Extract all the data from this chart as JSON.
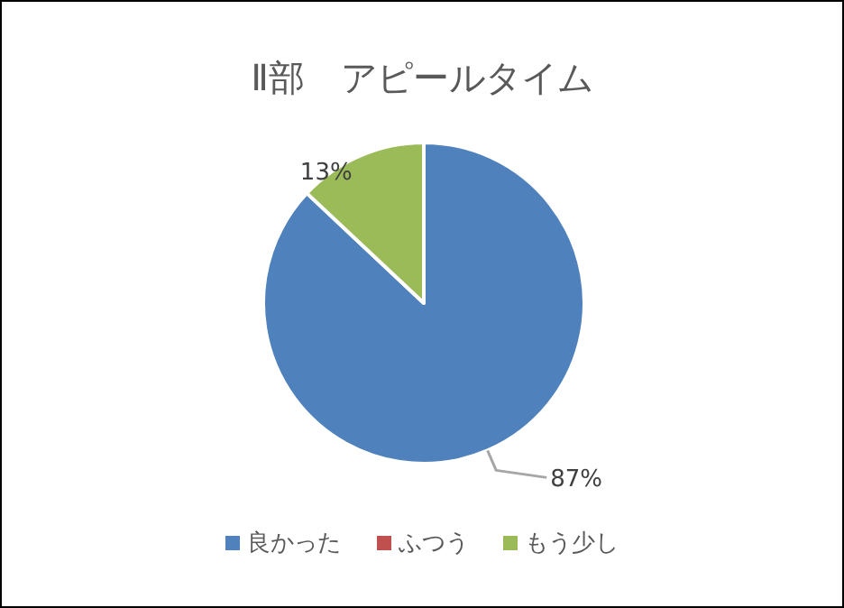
{
  "chart_data": {
    "type": "pie",
    "title": "Ⅱ部　アピールタイム",
    "categories": [
      "良かった",
      "ふつう",
      "もう少し"
    ],
    "values": [
      87,
      0,
      13
    ],
    "colors": [
      "#4f81bd",
      "#c0504d",
      "#9bbb59"
    ],
    "value_labels": [
      "87%",
      null,
      "13%"
    ],
    "legend": "bottom"
  }
}
